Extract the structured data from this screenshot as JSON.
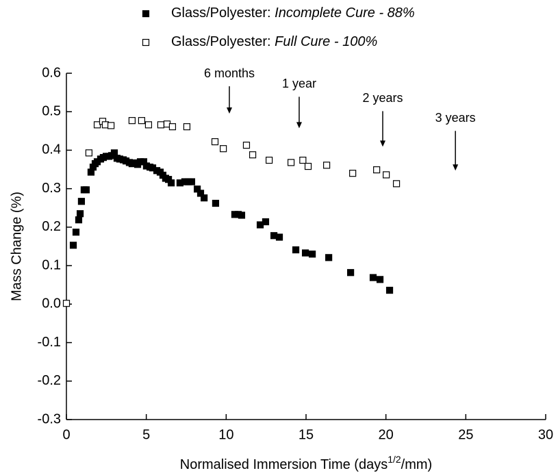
{
  "chart_data": {
    "type": "scatter",
    "xlabel": "Normalised Immersion Time (days1/2/mm)",
    "ylabel": "Mass Change (%)",
    "xlim": [
      0,
      30
    ],
    "xticks": [
      0,
      5,
      10,
      15,
      20,
      25,
      30
    ],
    "ylim": [
      -0.3,
      0.6
    ],
    "yticks": [
      -0.3,
      -0.2,
      -0.1,
      {
        "value": 0,
        "label": "0.0"
      },
      0.1,
      0.2,
      0.3,
      0.4,
      0.5,
      0.6
    ],
    "legend": "top",
    "series": [
      {
        "name": "Glass/Polyester: Incomplete Cure - 88%",
        "color": "#000000",
        "marker": "filled",
        "x": [
          0.43,
          0.6,
          0.77,
          0.86,
          0.94,
          1.11,
          1.24,
          1.54,
          1.67,
          1.8,
          1.93,
          2.14,
          2.31,
          2.49,
          2.66,
          2.83,
          3.0,
          3.17,
          3.34,
          3.56,
          3.73,
          3.94,
          4.11,
          4.29,
          4.46,
          4.63,
          4.84,
          5.01,
          5.23,
          5.4,
          5.66,
          5.87,
          6.04,
          6.21,
          6.39,
          6.56,
          7.11,
          7.41,
          7.63,
          7.84,
          8.19,
          8.4,
          8.62,
          9.34,
          10.54,
          10.76,
          10.97,
          12.13,
          12.47,
          12.99,
          13.33,
          14.36,
          14.96,
          15.39,
          16.42,
          17.79,
          19.2,
          19.63,
          20.23
        ],
        "values": [
          0.153,
          0.187,
          0.219,
          0.235,
          0.267,
          0.297,
          0.297,
          0.343,
          0.356,
          0.365,
          0.37,
          0.377,
          0.381,
          0.384,
          0.384,
          0.386,
          0.393,
          0.379,
          0.377,
          0.375,
          0.372,
          0.368,
          0.365,
          0.367,
          0.363,
          0.37,
          0.37,
          0.359,
          0.356,
          0.354,
          0.347,
          0.343,
          0.335,
          0.327,
          0.324,
          0.315,
          0.315,
          0.318,
          0.318,
          0.318,
          0.299,
          0.288,
          0.276,
          0.262,
          0.233,
          0.233,
          0.231,
          0.206,
          0.214,
          0.178,
          0.174,
          0.141,
          0.133,
          0.13,
          0.121,
          0.082,
          0.069,
          0.064,
          0.036
        ]
      },
      {
        "name": "Glass/Polyester: Full Cure - 100%",
        "color": "#000000",
        "marker": "hollow",
        "x": [
          0,
          1.41,
          1.93,
          2.27,
          2.44,
          2.79,
          4.11,
          4.71,
          5.14,
          5.91,
          6.3,
          6.64,
          7.54,
          9.3,
          9.82,
          11.27,
          11.66,
          12.69,
          14.06,
          14.8,
          15.13,
          16.29,
          17.92,
          19.42,
          20.02,
          20.66
        ],
        "values": [
          0.002,
          0.393,
          0.466,
          0.475,
          0.466,
          0.464,
          0.477,
          0.477,
          0.466,
          0.466,
          0.468,
          0.461,
          0.461,
          0.422,
          0.404,
          0.413,
          0.388,
          0.374,
          0.368,
          0.374,
          0.358,
          0.361,
          0.34,
          0.349,
          0.336,
          0.313
        ]
      }
    ],
    "annotations": [
      {
        "text": "6 months",
        "x": 10.2,
        "y": 0.495
      },
      {
        "text": "1 year",
        "x": 14.57,
        "y": 0.457
      },
      {
        "text": "2 years",
        "x": 19.8,
        "y": 0.409
      },
      {
        "text": "3 years",
        "x": 24.35,
        "y": 0.347
      }
    ]
  }
}
